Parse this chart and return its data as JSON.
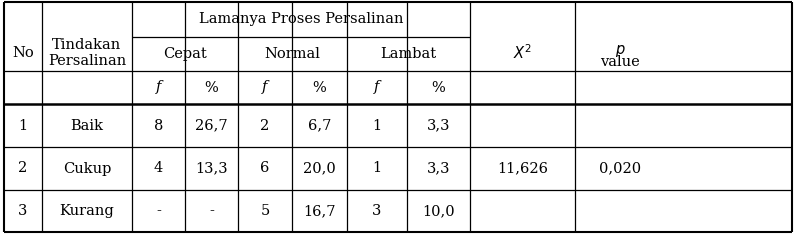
{
  "rows": [
    [
      "1",
      "Baik",
      "8",
      "26,7",
      "2",
      "6,7",
      "1",
      "3,3",
      "11,626",
      "0,020"
    ],
    [
      "2",
      "Cukup",
      "4",
      "13,3",
      "6",
      "20,0",
      "1",
      "3,3",
      "",
      ""
    ],
    [
      "3",
      "Kurang",
      "-",
      "-",
      "5",
      "16,7",
      "3",
      "10,0",
      "",
      ""
    ]
  ],
  "bg_color": "#ffffff",
  "text_color": "#000000",
  "line_color": "#000000",
  "font_size": 10.5
}
